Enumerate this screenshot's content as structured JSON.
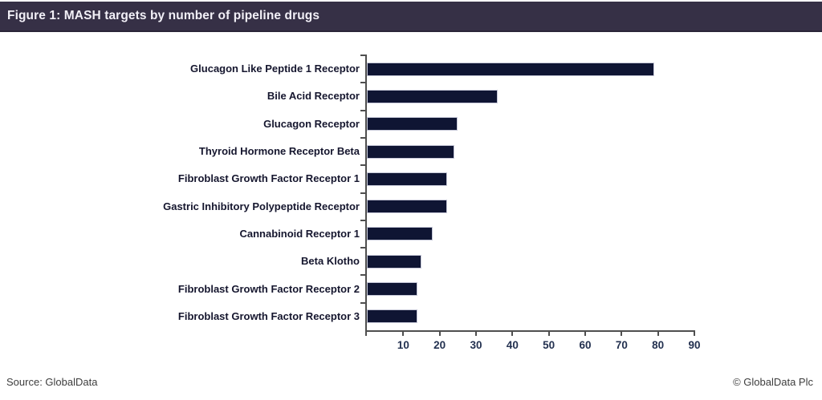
{
  "header": {
    "title": "Figure 1: MASH targets by number of pipeline drugs",
    "background_color": "#363046",
    "text_color": "#f2f0f7"
  },
  "footer": {
    "source": "Source: GlobalData",
    "copyright": "© GlobalData Plc"
  },
  "chart_data": {
    "type": "bar",
    "orientation": "horizontal",
    "title": "Figure 1: MASH targets by number of pipeline drugs",
    "categories": [
      "Glucagon Like Peptide 1 Receptor",
      "Bile Acid Receptor",
      "Glucagon Receptor",
      "Thyroid Hormone Receptor Beta",
      "Fibroblast Growth Factor Receptor 1",
      "Gastric Inhibitory Polypeptide Receptor",
      "Cannabinoid Receptor 1",
      "Beta Klotho",
      "Fibroblast Growth Factor Receptor 2",
      "Fibroblast Growth Factor Receptor 3"
    ],
    "values": [
      79,
      36,
      25,
      24,
      22,
      22,
      18,
      15,
      14,
      14
    ],
    "xlabel": "",
    "ylabel": "",
    "xlim": [
      0,
      90
    ],
    "xticks": [
      10,
      20,
      30,
      40,
      50,
      60,
      70,
      80,
      90
    ],
    "grid": false,
    "legend_position": "none",
    "bar_color": "#0f1533",
    "bar_border_color": "#c6c8d8",
    "axis_color": "#4f4f4f",
    "tick_label_color": "#233150",
    "category_label_color": "#15162e"
  }
}
